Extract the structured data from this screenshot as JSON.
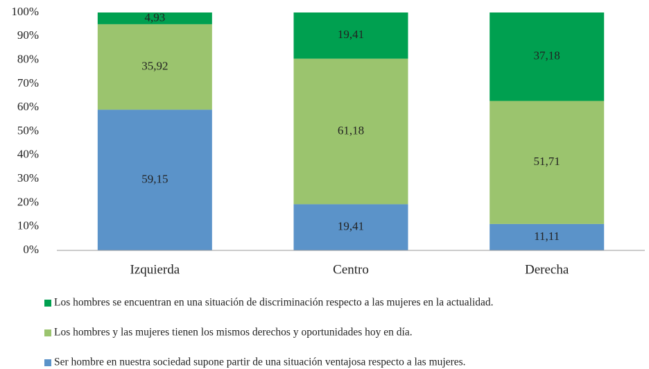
{
  "chart_data": {
    "type": "stacked_bar",
    "categories": [
      "Izquierda",
      "Centro",
      "Derecha"
    ],
    "series": [
      {
        "name": "Ser hombre en nuestra sociedad supone partir de una situación ventajosa respecto a las mujeres.",
        "color": "#5b93c9",
        "values": [
          59.15,
          19.41,
          11.11
        ],
        "value_labels": [
          "59,15",
          "19,41",
          "11,11"
        ]
      },
      {
        "name": "Los hombres y las mujeres tienen los mismos derechos y oportunidades hoy en día.",
        "color": "#9bc46e",
        "values": [
          35.92,
          61.18,
          51.71
        ],
        "value_labels": [
          "35,92",
          "61,18",
          "51,71"
        ]
      },
      {
        "name": "Los hombres se encuentran en una situación de discriminación respecto a las mujeres en la actualidad.",
        "color": "#00a050",
        "values": [
          4.93,
          19.41,
          37.18
        ],
        "value_labels": [
          "4,93",
          "19,41",
          "37,18"
        ]
      }
    ],
    "ylim": [
      0,
      100
    ],
    "yticks": [
      {
        "value": 0,
        "label": "0%"
      },
      {
        "value": 10,
        "label": "10%"
      },
      {
        "value": 20,
        "label": "20%"
      },
      {
        "value": 30,
        "label": "30%"
      },
      {
        "value": 40,
        "label": "40%"
      },
      {
        "value": 50,
        "label": "50%"
      },
      {
        "value": 60,
        "label": "60%"
      },
      {
        "value": 70,
        "label": "70%"
      },
      {
        "value": 80,
        "label": "80%"
      },
      {
        "value": 90,
        "label": "90%"
      },
      {
        "value": 100,
        "label": "100%"
      }
    ],
    "grid": false,
    "legend": "bottom"
  }
}
